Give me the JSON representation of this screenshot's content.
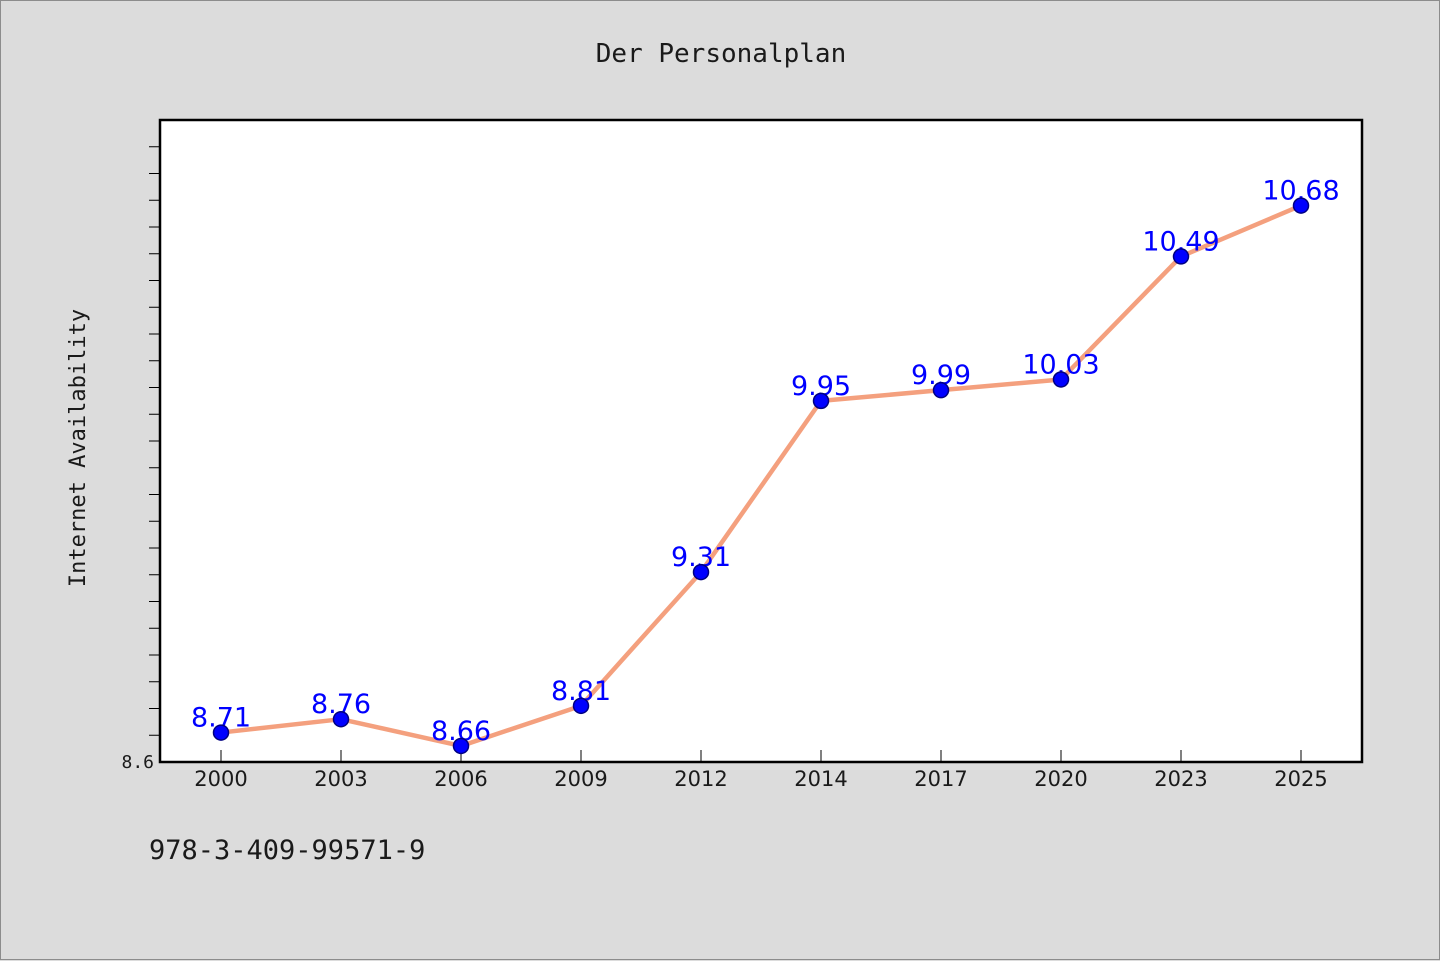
{
  "chart_data": {
    "type": "line",
    "title": "Der Personalplan",
    "xlabel": "",
    "ylabel": "Internet Availability",
    "categories": [
      "2000",
      "2003",
      "2006",
      "2009",
      "2012",
      "2014",
      "2017",
      "2020",
      "2023",
      "2025"
    ],
    "series": [
      {
        "values": [
          8.71,
          8.76,
          8.66,
          8.81,
          9.31,
          9.95,
          9.99,
          10.03,
          10.49,
          10.68
        ]
      }
    ],
    "data_labels": [
      "8.71",
      "8.76",
      "8.66",
      "8.81",
      "9.31",
      "9.95",
      "9.99",
      "10.03",
      "10.49",
      "10.68"
    ],
    "ylim": [
      8.6,
      11.0
    ],
    "ytick_labels": [
      "8.6"
    ],
    "grid": false,
    "legend": "none",
    "colors": {
      "line": "#f4a07e",
      "marker": "#0000ff",
      "marker_edge": "#000080",
      "data_label": "#0000ff",
      "plot_background": "#ffffff",
      "figure_background": "#dcdcdc"
    }
  },
  "footer_note": "978-3-409-99571-9"
}
